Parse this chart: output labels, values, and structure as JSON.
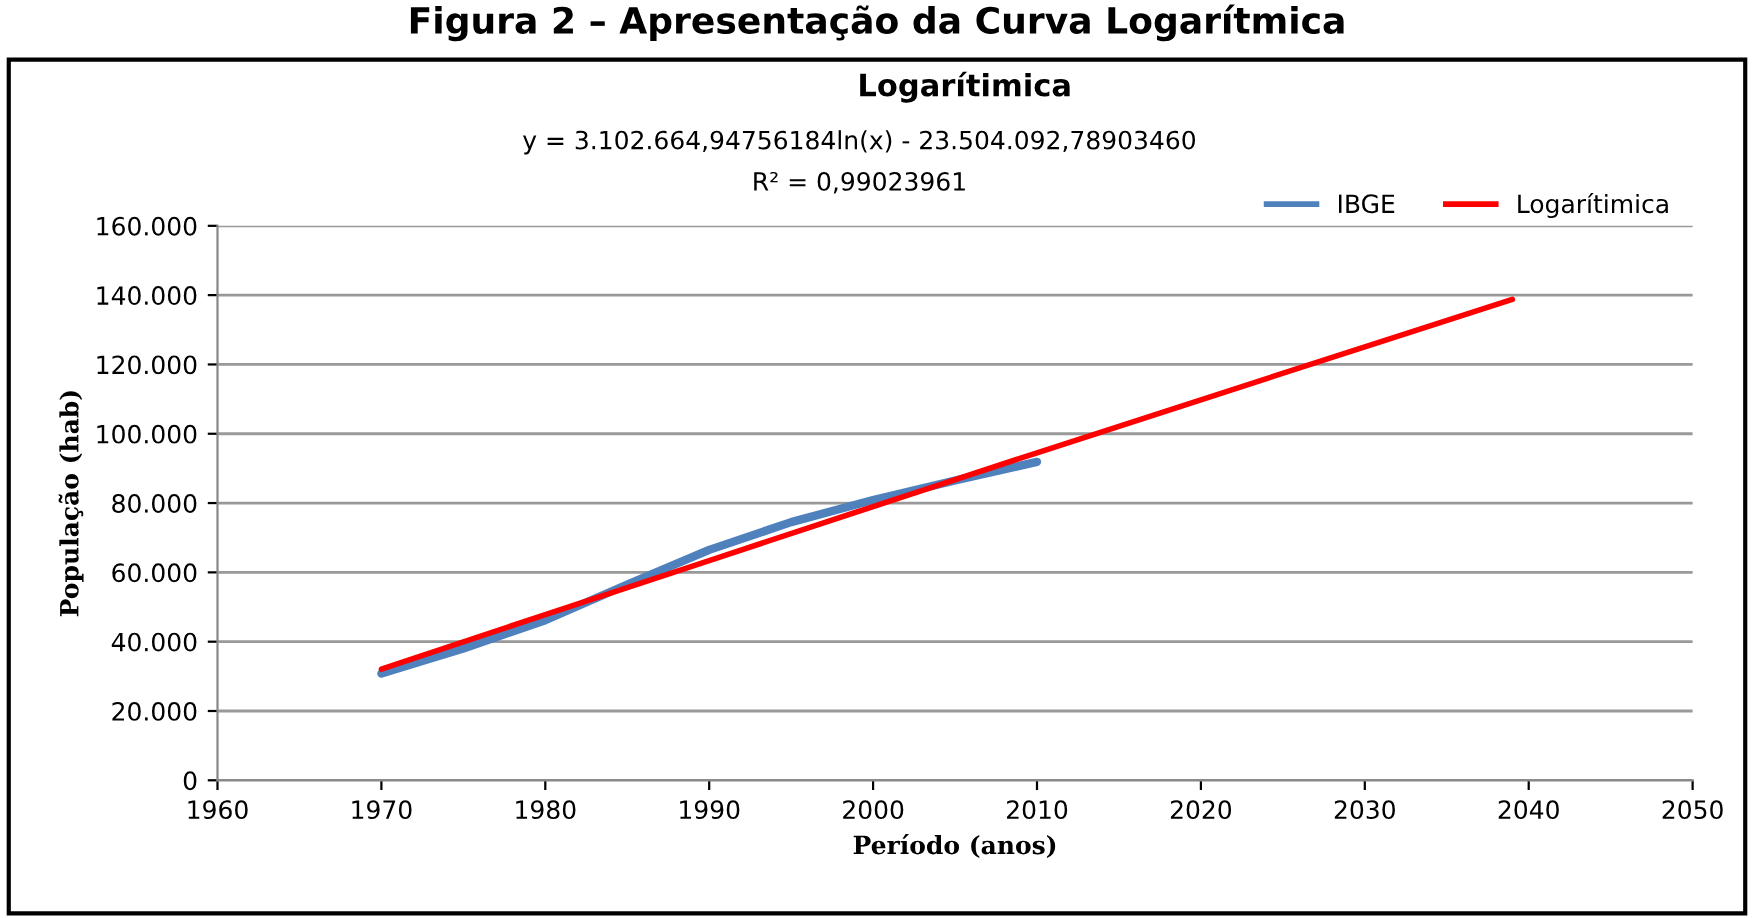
{
  "chart_data": {
    "type": "line",
    "title": "Logarítimica",
    "annotations": [
      "Figura 2 – Apresentação da Curva Logarítmica",
      "y = 3.102.664,94756184ln(x) - 23.504.092,78903460",
      "R² = 0,99023961"
    ],
    "xlabel": "Período (anos)",
    "ylabel": "População (hab)",
    "series": [
      {
        "name": "IBGE",
        "color": "#4f81bd",
        "x": [
          1970,
          1975,
          1980,
          1985,
          1990,
          1995,
          2000,
          2005,
          2010
        ],
        "values": [
          30800,
          38000,
          46200,
          56500,
          66500,
          74500,
          80900,
          86500,
          91900
        ]
      },
      {
        "name": "Logarítimica",
        "color": "#ff0000",
        "x": [
          1970,
          1980,
          1990,
          2000,
          2010,
          2020,
          2030,
          2039
        ],
        "values": [
          32100,
          47800,
          63400,
          79000,
          94500,
          109800,
          125100,
          138800
        ]
      }
    ],
    "xlim": [
      1960,
      2050
    ],
    "xticks": [
      1960,
      1970,
      1980,
      1990,
      2000,
      2010,
      2020,
      2030,
      2040,
      2050
    ],
    "ylim": [
      0,
      160000
    ],
    "yticks": [
      0,
      {
        "value": 20000,
        "label": "20.000"
      },
      {
        "value": 40000,
        "label": "40.000"
      },
      {
        "value": 60000,
        "label": "60.000"
      },
      {
        "value": 80000,
        "label": "80.000"
      },
      {
        "value": 100000,
        "label": "100.000"
      },
      {
        "value": 120000,
        "label": "120.000"
      },
      {
        "value": 140000,
        "label": "140.000"
      },
      {
        "value": 160000,
        "label": "160.000"
      }
    ],
    "grid": "y",
    "legend": "top right",
    "marker": "none",
    "line_style": "solid"
  }
}
